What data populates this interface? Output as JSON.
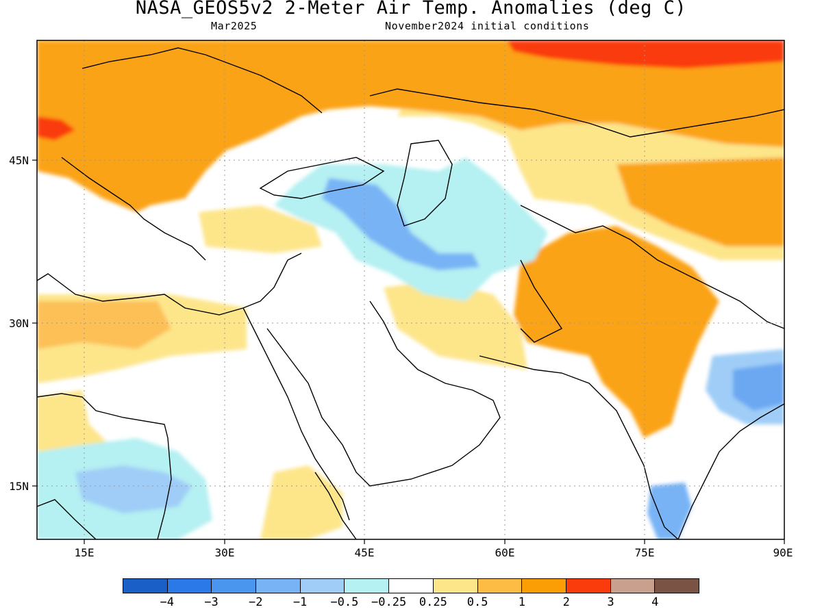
{
  "header": {
    "title": "NASA_GEOS5v2 2-Meter Air Temp. Anomalies (deg C)",
    "valid_month": "Mar2025",
    "init_conditions": "November2024 initial conditions"
  },
  "map": {
    "lon_range": [
      10,
      90
    ],
    "lat_range": [
      9.5,
      57.5
    ],
    "lon_ticks": [
      "15E",
      "30E",
      "45E",
      "60E",
      "75E",
      "90E"
    ],
    "lat_ticks": [
      "45N",
      "30N",
      "15N"
    ],
    "grid": "dotted"
  },
  "legend": {
    "colors": [
      "#1a5fc8",
      "#2b78e8",
      "#4a96ef",
      "#78b4f5",
      "#9fcdf7",
      "#b5f0f2",
      "#ffffff",
      "#fde58a",
      "#fdbc43",
      "#fb9e06",
      "#fa3b0b",
      "#c9a08e",
      "#7a5344"
    ],
    "labels": [
      "−4",
      "−3",
      "−2",
      "−1",
      "−0.5",
      "−0.25",
      "0.25",
      "0.5",
      "1",
      "2",
      "3",
      "4"
    ]
  }
}
